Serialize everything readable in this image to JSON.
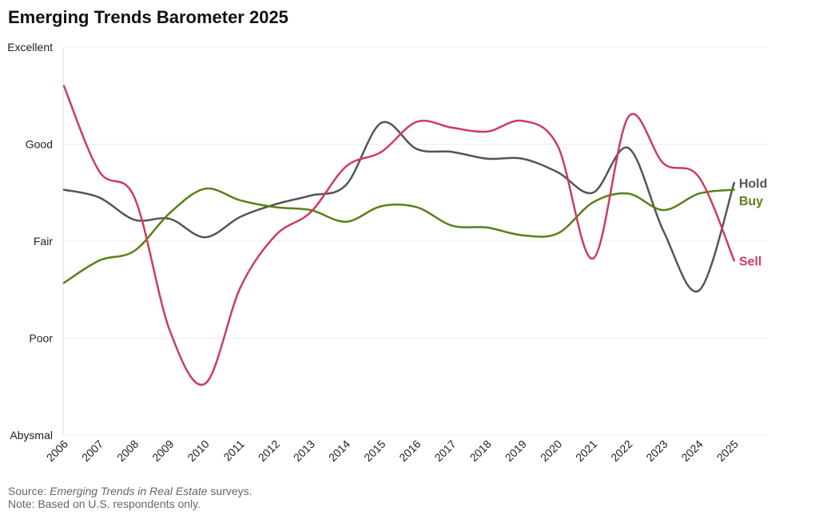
{
  "chart_data": {
    "type": "line",
    "title": "Emerging Trends Barometer 2025",
    "x": [
      "2006",
      "2007",
      "2008",
      "2009",
      "2010",
      "2011",
      "2012",
      "2013",
      "2014",
      "2015",
      "2016",
      "2017",
      "2018",
      "2019",
      "2020",
      "2021",
      "2022",
      "2023",
      "2024",
      "2025"
    ],
    "y_categories": [
      "Excellent",
      "Good",
      "Fair",
      "Poor",
      "Abysmal"
    ],
    "y_category_values": [
      5,
      4,
      3,
      2,
      1
    ],
    "ylim": [
      1,
      5
    ],
    "grid": true,
    "legend_placement": "line-end labels",
    "series": [
      {
        "name": "Hold",
        "color": "#555555",
        "values": [
          3.53,
          3.45,
          3.22,
          3.23,
          3.04,
          3.25,
          3.38,
          3.47,
          3.58,
          4.22,
          3.95,
          3.92,
          3.85,
          3.85,
          3.71,
          3.5,
          3.96,
          3.1,
          2.49,
          3.6
        ]
      },
      {
        "name": "Buy",
        "color": "#5a8019",
        "values": [
          2.57,
          2.8,
          2.9,
          3.29,
          3.54,
          3.42,
          3.35,
          3.32,
          3.2,
          3.36,
          3.35,
          3.16,
          3.14,
          3.06,
          3.08,
          3.4,
          3.49,
          3.32,
          3.49,
          3.53
        ]
      },
      {
        "name": "Sell",
        "color": "#cc3d5c",
        "values": [
          4.6,
          3.72,
          3.45,
          2.08,
          1.53,
          2.52,
          3.06,
          3.3,
          3.77,
          3.92,
          4.23,
          4.17,
          4.13,
          4.24,
          3.98,
          2.82,
          4.28,
          3.8,
          3.66,
          2.8
        ]
      }
    ]
  },
  "footer": {
    "source_prefix": "Source: ",
    "source_italic": "Emerging Trends in Real Estate",
    "source_suffix": " surveys.",
    "note": "Note: Based on U.S. respondents only."
  }
}
